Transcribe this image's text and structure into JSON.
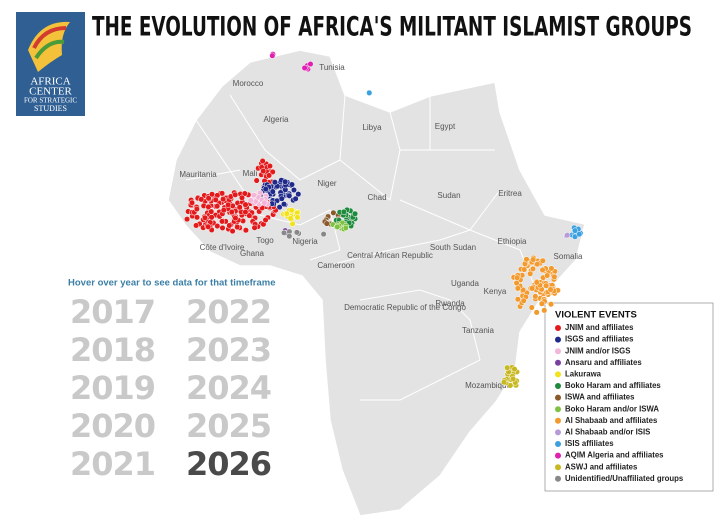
{
  "header": {
    "title": "THE EVOLUTION OF AFRICA'S MILITANT ISLAMIST GROUPS"
  },
  "logo": {
    "lines": [
      "AFRICA",
      "CENTER",
      "FOR STRATEGIC",
      "STUDIES"
    ]
  },
  "instruction": "Hover over year to see data for that timeframe",
  "years": {
    "items": [
      "2017",
      "2018",
      "2019",
      "2020",
      "2021",
      "2022",
      "2023",
      "2024",
      "2025",
      "2026"
    ],
    "active": "2026"
  },
  "countries": [
    "Morocco",
    "Tunisia",
    "Algeria",
    "Libya",
    "Egypt",
    "Mali",
    "Niger",
    "Mauritania",
    "Chad",
    "Sudan",
    "Eritrea",
    "Côte d'Ivoire",
    "Ghana",
    "Togo",
    "Nigeria",
    "Cameroon",
    "Central African Republic",
    "South Sudan",
    "Ethiopia",
    "Somalia",
    "Uganda",
    "Kenya",
    "Rwanda",
    "Democratic Republic of the Congo",
    "Tanzania",
    "Mozambique"
  ],
  "legend": {
    "title": "VIOLENT EVENTS",
    "items": [
      {
        "name": "JNIM and affiliates",
        "color": "#e31a1c"
      },
      {
        "name": "ISGS and affiliates",
        "color": "#1f2a8a"
      },
      {
        "name": "JNIM and/or ISGS",
        "color": "#f4b6d8"
      },
      {
        "name": "Ansaru and affiliates",
        "color": "#7b3fa0"
      },
      {
        "name": "Lakurawa",
        "color": "#f2e21a"
      },
      {
        "name": "Boko Haram and affiliates",
        "color": "#1e8a3c"
      },
      {
        "name": "ISWA and affiliates",
        "color": "#8b5a2b"
      },
      {
        "name": "Boko Haram and/or ISWA",
        "color": "#7fc241"
      },
      {
        "name": "Al Shabaab and affiliates",
        "color": "#f39a2e"
      },
      {
        "name": "Al Shabaab and/or ISIS",
        "color": "#b89ad8"
      },
      {
        "name": "ISIS affiliates",
        "color": "#3aa0e0"
      },
      {
        "name": "AQIM Algeria and affiliates",
        "color": "#e020b0"
      },
      {
        "name": "ASWJ and affiliates",
        "color": "#c8b820"
      },
      {
        "name": "Unidentified/Unaffiliated groups",
        "color": "#888888"
      }
    ]
  }
}
